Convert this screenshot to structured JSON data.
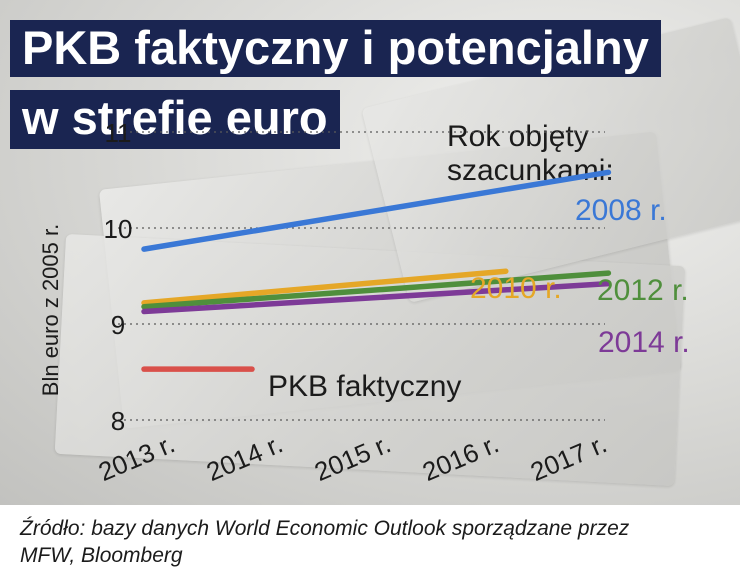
{
  "title": {
    "line1": "PKB faktyczny i potencjalny",
    "line2": "w strefie euro"
  },
  "legend": {
    "title_line1": "Rok objęty",
    "title_line2": "szacunkami:"
  },
  "source": {
    "line1": "Źródło: bazy danych World Economic Outlook sporządzane przez",
    "line2": "MFW, Bloomberg"
  },
  "colors": {
    "title_bg": "#1a2551",
    "s2008": "#3a78d6",
    "s2010": "#e5a727",
    "s2012": "#4f8f3c",
    "s2014": "#7d3a97",
    "actual": "#d9504a"
  },
  "chart_data": {
    "type": "line",
    "x": [
      "2013 r.",
      "2014 r.",
      "2015 r.",
      "2016 r.",
      "2017 r."
    ],
    "ylabel": "Bln euro z 2005 r.",
    "ylim": [
      8,
      11
    ],
    "yticks": [
      "8",
      "9",
      "10",
      "11"
    ],
    "grid": true,
    "series": [
      {
        "name": "2008 r.",
        "color": "#3a78d6",
        "x": [
          0,
          4.3
        ],
        "values": [
          9.78,
          10.58
        ]
      },
      {
        "name": "2010 r.",
        "color": "#e5a727",
        "x": [
          0,
          3.35
        ],
        "values": [
          9.22,
          9.55
        ]
      },
      {
        "name": "2012 r.",
        "color": "#4f8f3c",
        "x": [
          0,
          4.3
        ],
        "values": [
          9.18,
          9.53
        ]
      },
      {
        "name": "2014 r.",
        "color": "#7d3a97",
        "x": [
          0,
          4.3
        ],
        "values": [
          9.13,
          9.42
        ]
      },
      {
        "name": "PKB faktyczny",
        "color": "#d9504a",
        "x": [
          0,
          1
        ],
        "values": [
          8.53,
          8.53
        ]
      }
    ]
  }
}
